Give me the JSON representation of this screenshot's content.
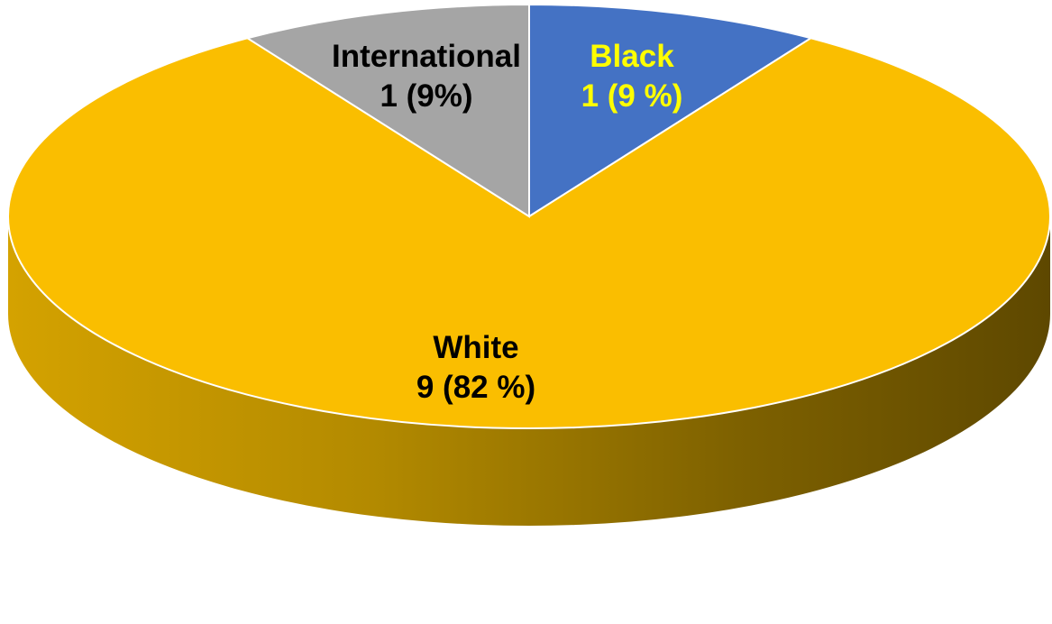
{
  "chart_data": {
    "type": "pie",
    "style": "3d",
    "categories": [
      "Black",
      "White",
      "International"
    ],
    "values": [
      1,
      9,
      1
    ],
    "value_labels": [
      "1 (9 %)",
      "9 (82 %)",
      "1 (9%)"
    ],
    "percentages": [
      9,
      82,
      9
    ],
    "colors": [
      "#4472C4",
      "#FABE00",
      "#A5A5A5"
    ],
    "label_colors": [
      "#FFFF00",
      "#000000",
      "#000000"
    ],
    "title": "",
    "legend": "none"
  }
}
